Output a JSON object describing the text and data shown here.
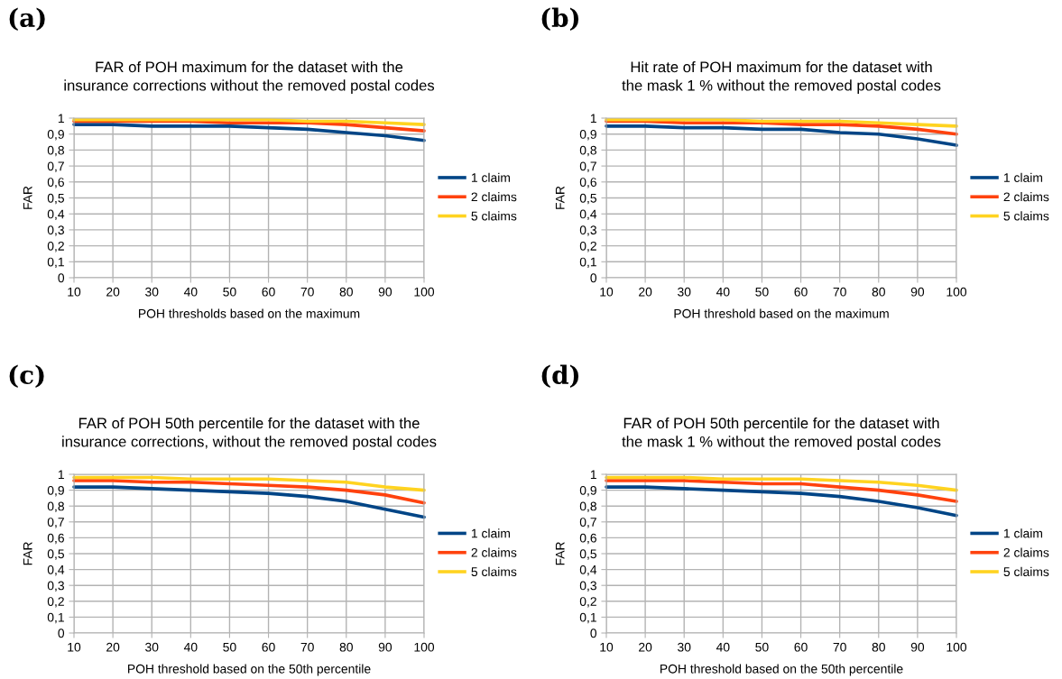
{
  "chart_data": [
    {
      "type": "line",
      "title": "FAR of POH maximum for the dataset with the\ninsurance corrections without the removed postal codes",
      "xlabel": "POH thresholds based on the maximum",
      "ylabel": "FAR",
      "annotations": [
        "(a)"
      ],
      "x": [
        10,
        20,
        30,
        40,
        50,
        60,
        70,
        80,
        90,
        100
      ],
      "xlim": [
        10,
        100
      ],
      "xticks": [
        10,
        20,
        30,
        40,
        50,
        60,
        70,
        80,
        90,
        100
      ],
      "ylim": [
        0,
        1
      ],
      "yticks": [
        0,
        {
          "value": 0.1,
          "label": "0,1"
        },
        {
          "value": 0.2,
          "label": "0,2"
        },
        {
          "value": 0.3,
          "label": "0,3"
        },
        {
          "value": 0.4,
          "label": "0,4"
        },
        {
          "value": 0.5,
          "label": "0,5"
        },
        {
          "value": 0.6,
          "label": "0,6"
        },
        {
          "value": 0.7,
          "label": "0,7"
        },
        {
          "value": 0.8,
          "label": "0,8"
        },
        {
          "value": 0.9,
          "label": "0,9"
        },
        1
      ],
      "grid": true,
      "legend": "right",
      "series": [
        {
          "name": "1 claim",
          "color": "#004586",
          "values": [
            0.96,
            0.96,
            0.95,
            0.95,
            0.95,
            0.94,
            0.93,
            0.91,
            0.89,
            0.86
          ]
        },
        {
          "name": "2 claims",
          "color": "#ff420e",
          "values": [
            0.98,
            0.98,
            0.98,
            0.98,
            0.97,
            0.97,
            0.97,
            0.96,
            0.94,
            0.92
          ]
        },
        {
          "name": "5 claims",
          "color": "#ffd320",
          "values": [
            0.99,
            0.99,
            0.99,
            0.99,
            0.99,
            0.99,
            0.98,
            0.98,
            0.97,
            0.96
          ]
        }
      ]
    },
    {
      "type": "line",
      "title": "Hit rate of POH maximum for the dataset with\nthe mask 1 % without the removed postal codes",
      "xlabel": "POH threshold based on the maximum",
      "ylabel": "FAR",
      "annotations": [
        "(b)"
      ],
      "x": [
        10,
        20,
        30,
        40,
        50,
        60,
        70,
        80,
        90,
        100
      ],
      "xlim": [
        10,
        100
      ],
      "xticks": [
        10,
        20,
        30,
        40,
        50,
        60,
        70,
        80,
        90,
        100
      ],
      "ylim": [
        0,
        1
      ],
      "yticks": [
        0,
        {
          "value": 0.1,
          "label": "0,1"
        },
        {
          "value": 0.2,
          "label": "0,2"
        },
        {
          "value": 0.3,
          "label": "0,3"
        },
        {
          "value": 0.4,
          "label": "0,4"
        },
        {
          "value": 0.5,
          "label": "0,5"
        },
        {
          "value": 0.6,
          "label": "0,6"
        },
        {
          "value": 0.7,
          "label": "0,7"
        },
        {
          "value": 0.8,
          "label": "0,8"
        },
        {
          "value": 0.9,
          "label": "0,9"
        },
        1
      ],
      "grid": true,
      "legend": "right",
      "series": [
        {
          "name": "1 claim",
          "color": "#004586",
          "values": [
            0.95,
            0.95,
            0.94,
            0.94,
            0.93,
            0.93,
            0.91,
            0.9,
            0.87,
            0.83
          ]
        },
        {
          "name": "2 claims",
          "color": "#ff420e",
          "values": [
            0.98,
            0.98,
            0.97,
            0.97,
            0.97,
            0.96,
            0.96,
            0.95,
            0.93,
            0.9
          ]
        },
        {
          "name": "5 claims",
          "color": "#ffd320",
          "values": [
            0.99,
            0.99,
            0.99,
            0.99,
            0.98,
            0.98,
            0.98,
            0.97,
            0.96,
            0.95
          ]
        }
      ]
    },
    {
      "type": "line",
      "title": "FAR of POH 50th percentile for the dataset with the\ninsurance corrections, without the removed postal codes",
      "xlabel": "POH threshold based on the 50th percentile",
      "ylabel": "FAR",
      "annotations": [
        "(c)"
      ],
      "x": [
        10,
        20,
        30,
        40,
        50,
        60,
        70,
        80,
        90,
        100
      ],
      "xlim": [
        10,
        100
      ],
      "xticks": [
        10,
        20,
        30,
        40,
        50,
        60,
        70,
        80,
        90,
        100
      ],
      "ylim": [
        0,
        1
      ],
      "yticks": [
        0,
        {
          "value": 0.1,
          "label": "0,1"
        },
        {
          "value": 0.2,
          "label": "0,2"
        },
        {
          "value": 0.3,
          "label": "0,3"
        },
        {
          "value": 0.4,
          "label": "0,4"
        },
        {
          "value": 0.5,
          "label": "0,5"
        },
        {
          "value": 0.6,
          "label": "0,6"
        },
        {
          "value": 0.7,
          "label": "0,7"
        },
        {
          "value": 0.8,
          "label": "0,8"
        },
        {
          "value": 0.9,
          "label": "0,9"
        },
        1
      ],
      "grid": true,
      "legend": "right",
      "series": [
        {
          "name": "1 claim",
          "color": "#004586",
          "values": [
            0.92,
            0.92,
            0.91,
            0.9,
            0.89,
            0.88,
            0.86,
            0.83,
            0.78,
            0.73
          ]
        },
        {
          "name": "2 claims",
          "color": "#ff420e",
          "values": [
            0.96,
            0.96,
            0.95,
            0.95,
            0.94,
            0.93,
            0.92,
            0.9,
            0.87,
            0.82
          ]
        },
        {
          "name": "5 claims",
          "color": "#ffd320",
          "values": [
            0.98,
            0.98,
            0.98,
            0.97,
            0.97,
            0.97,
            0.96,
            0.95,
            0.92,
            0.9
          ]
        }
      ]
    },
    {
      "type": "line",
      "title": "FAR of POH 50th percentile for the dataset with\nthe mask 1 % without the removed postal codes",
      "xlabel": "POH threshold based on the 50th percentile",
      "ylabel": "FAR",
      "annotations": [
        "(d)"
      ],
      "x": [
        10,
        20,
        30,
        40,
        50,
        60,
        70,
        80,
        90,
        100
      ],
      "xlim": [
        10,
        100
      ],
      "xticks": [
        10,
        20,
        30,
        40,
        50,
        60,
        70,
        80,
        90,
        100
      ],
      "ylim": [
        0,
        1
      ],
      "yticks": [
        0,
        {
          "value": 0.1,
          "label": "0,1"
        },
        {
          "value": 0.2,
          "label": "0,2"
        },
        {
          "value": 0.3,
          "label": "0,3"
        },
        {
          "value": 0.4,
          "label": "0,4"
        },
        {
          "value": 0.5,
          "label": "0,5"
        },
        {
          "value": 0.6,
          "label": "0,6"
        },
        {
          "value": 0.7,
          "label": "0,7"
        },
        {
          "value": 0.8,
          "label": "0,8"
        },
        {
          "value": 0.9,
          "label": "0,9"
        },
        1
      ],
      "grid": true,
      "legend": "right",
      "series": [
        {
          "name": "1 claim",
          "color": "#004586",
          "values": [
            0.92,
            0.92,
            0.91,
            0.9,
            0.89,
            0.88,
            0.86,
            0.83,
            0.79,
            0.74
          ]
        },
        {
          "name": "2 claims",
          "color": "#ff420e",
          "values": [
            0.96,
            0.96,
            0.96,
            0.95,
            0.94,
            0.94,
            0.92,
            0.9,
            0.87,
            0.83
          ]
        },
        {
          "name": "5 claims",
          "color": "#ffd320",
          "values": [
            0.98,
            0.98,
            0.98,
            0.97,
            0.97,
            0.97,
            0.96,
            0.95,
            0.93,
            0.9
          ]
        }
      ]
    }
  ]
}
